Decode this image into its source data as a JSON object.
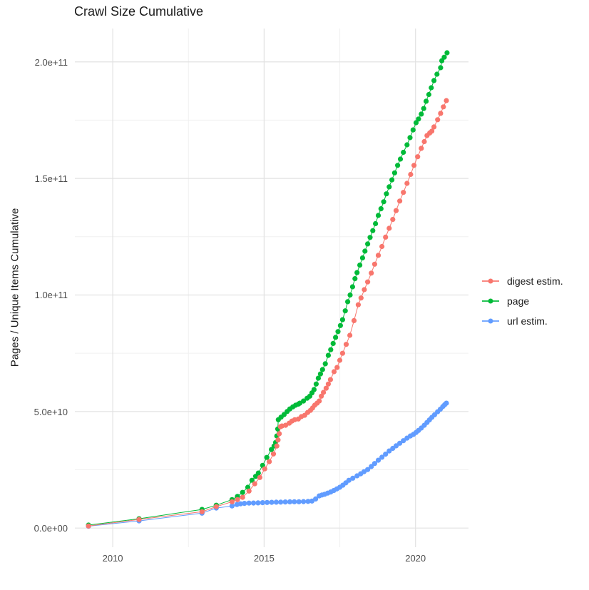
{
  "title": "Crawl Size Cumulative",
  "axes": {
    "y_label": "Pages / Unique Items Cumulative",
    "x_ticks": [
      {
        "label": "2010",
        "year": 2010
      },
      {
        "label": "2015",
        "year": 2015
      },
      {
        "label": "2020",
        "year": 2020
      }
    ],
    "y_ticks": [
      {
        "label": "0.0e+00",
        "value_billions": 0
      },
      {
        "label": "5.0e+10",
        "value_billions": 50
      },
      {
        "label": "1.0e+11",
        "value_billions": 100
      },
      {
        "label": "1.5e+11",
        "value_billions": 150
      },
      {
        "label": "2.0e+11",
        "value_billions": 200
      }
    ]
  },
  "chart_data": {
    "type": "line",
    "title": "Crawl Size Cumulative",
    "xlabel": "",
    "ylabel": "Pages / Unique Items Cumulative",
    "value_unit_note": "y values stored in billions (1e9); axis shows scientific notation",
    "xlim": [
      2008.75,
      2021.75
    ],
    "ylim_billions": [
      -8.2,
      214.3
    ],
    "grid": "on",
    "legend_position": "right",
    "x_major_gridlines": [
      2010,
      2015,
      2020
    ],
    "x_minor_gridlines": [
      2012.5,
      2017.5
    ],
    "y_major_gridlines_billions": [
      0,
      50,
      100,
      150,
      200
    ],
    "y_minor_gridlines_billions": [
      25,
      75,
      125,
      175
    ],
    "draw_order": [
      1,
      2,
      0
    ],
    "series": [
      {
        "name": "digest estim.",
        "color": "#F8766D",
        "points": [
          [
            2009.2,
            0.9
          ],
          [
            2010.87,
            3.7
          ],
          [
            2012.95,
            7.0
          ],
          [
            2013.42,
            9.2
          ],
          [
            2013.94,
            11.3
          ],
          [
            2014.12,
            12.2
          ],
          [
            2014.29,
            13.2
          ],
          [
            2014.5,
            15.9
          ],
          [
            2014.69,
            19.0
          ],
          [
            2014.86,
            21.7
          ],
          [
            2015.02,
            25.4
          ],
          [
            2015.17,
            28.5
          ],
          [
            2015.31,
            31.8
          ],
          [
            2015.42,
            35.2
          ],
          [
            2015.46,
            37.8
          ],
          [
            2015.5,
            40.5
          ],
          [
            2015.54,
            43.5
          ],
          [
            2015.59,
            43.8
          ],
          [
            2015.71,
            44.1
          ],
          [
            2015.83,
            45.0
          ],
          [
            2015.92,
            45.9
          ],
          [
            2016.01,
            46.5
          ],
          [
            2016.13,
            46.8
          ],
          [
            2016.23,
            47.8
          ],
          [
            2016.34,
            48.4
          ],
          [
            2016.44,
            49.6
          ],
          [
            2016.53,
            50.5
          ],
          [
            2016.6,
            51.5
          ],
          [
            2016.67,
            52.7
          ],
          [
            2016.75,
            53.6
          ],
          [
            2016.82,
            54.5
          ],
          [
            2016.89,
            56.6
          ],
          [
            2016.96,
            58.2
          ],
          [
            2017.05,
            60.0
          ],
          [
            2017.12,
            61.8
          ],
          [
            2017.19,
            63.7
          ],
          [
            2017.31,
            67.1
          ],
          [
            2017.41,
            68.9
          ],
          [
            2017.5,
            72.0
          ],
          [
            2017.59,
            75.0
          ],
          [
            2017.71,
            78.8
          ],
          [
            2017.83,
            82.7
          ],
          [
            2017.97,
            89.0
          ],
          [
            2018.11,
            95.8
          ],
          [
            2018.2,
            98.7
          ],
          [
            2018.31,
            102.3
          ],
          [
            2018.42,
            105.6
          ],
          [
            2018.54,
            109.4
          ],
          [
            2018.65,
            113.2
          ],
          [
            2018.77,
            117.0
          ],
          [
            2018.89,
            120.8
          ],
          [
            2019.01,
            124.8
          ],
          [
            2019.13,
            128.6
          ],
          [
            2019.25,
            132.4
          ],
          [
            2019.36,
            136.2
          ],
          [
            2019.48,
            140.3
          ],
          [
            2019.6,
            144.0
          ],
          [
            2019.72,
            147.9
          ],
          [
            2019.84,
            151.7
          ],
          [
            2019.95,
            155.6
          ],
          [
            2020.07,
            159.3
          ],
          [
            2020.19,
            162.9
          ],
          [
            2020.29,
            165.8
          ],
          [
            2020.38,
            168.4
          ],
          [
            2020.47,
            169.5
          ],
          [
            2020.54,
            170.3
          ],
          [
            2020.61,
            172.1
          ],
          [
            2020.73,
            175.2
          ],
          [
            2020.83,
            177.9
          ],
          [
            2020.92,
            180.7
          ],
          [
            2021.02,
            183.4
          ]
        ]
      },
      {
        "name": "page",
        "color": "#00BA38",
        "points": [
          [
            2009.2,
            1.3
          ],
          [
            2010.87,
            4.0
          ],
          [
            2012.95,
            8.0
          ],
          [
            2013.42,
            9.8
          ],
          [
            2013.94,
            12.2
          ],
          [
            2014.12,
            13.6
          ],
          [
            2014.29,
            15.3
          ],
          [
            2014.46,
            17.5
          ],
          [
            2014.6,
            20.5
          ],
          [
            2014.72,
            22.2
          ],
          [
            2014.81,
            23.6
          ],
          [
            2014.95,
            26.9
          ],
          [
            2015.09,
            30.3
          ],
          [
            2015.24,
            33.7
          ],
          [
            2015.33,
            35.2
          ],
          [
            2015.38,
            36.7
          ],
          [
            2015.42,
            39.5
          ],
          [
            2015.45,
            42.5
          ],
          [
            2015.47,
            46.5
          ],
          [
            2015.56,
            47.6
          ],
          [
            2015.66,
            48.7
          ],
          [
            2015.76,
            50.0
          ],
          [
            2015.85,
            51.1
          ],
          [
            2015.95,
            52.0
          ],
          [
            2016.04,
            52.7
          ],
          [
            2016.13,
            53.2
          ],
          [
            2016.18,
            53.6
          ],
          [
            2016.3,
            54.5
          ],
          [
            2016.42,
            55.7
          ],
          [
            2016.51,
            56.6
          ],
          [
            2016.58,
            58.0
          ],
          [
            2016.65,
            59.4
          ],
          [
            2016.72,
            61.8
          ],
          [
            2016.79,
            64.3
          ],
          [
            2016.86,
            66.1
          ],
          [
            2016.93,
            68.0
          ],
          [
            2017.02,
            70.5
          ],
          [
            2017.12,
            74.1
          ],
          [
            2017.2,
            76.5
          ],
          [
            2017.28,
            79.2
          ],
          [
            2017.36,
            81.8
          ],
          [
            2017.44,
            84.3
          ],
          [
            2017.52,
            86.9
          ],
          [
            2017.59,
            89.4
          ],
          [
            2017.68,
            93.2
          ],
          [
            2017.76,
            97.1
          ],
          [
            2017.84,
            100.0
          ],
          [
            2017.92,
            103.5
          ],
          [
            2018.0,
            107.0
          ],
          [
            2018.07,
            109.6
          ],
          [
            2018.16,
            112.8
          ],
          [
            2018.25,
            115.9
          ],
          [
            2018.33,
            118.8
          ],
          [
            2018.42,
            121.9
          ],
          [
            2018.5,
            124.7
          ],
          [
            2018.59,
            127.6
          ],
          [
            2018.68,
            130.6
          ],
          [
            2018.77,
            134.1
          ],
          [
            2018.86,
            137.0
          ],
          [
            2018.95,
            140.0
          ],
          [
            2019.04,
            143.4
          ],
          [
            2019.13,
            146.4
          ],
          [
            2019.22,
            149.4
          ],
          [
            2019.31,
            152.4
          ],
          [
            2019.41,
            155.6
          ],
          [
            2019.5,
            158.3
          ],
          [
            2019.6,
            161.2
          ],
          [
            2019.72,
            164.4
          ],
          [
            2019.82,
            167.5
          ],
          [
            2019.92,
            170.8
          ],
          [
            2020.02,
            173.9
          ],
          [
            2020.1,
            175.5
          ],
          [
            2020.19,
            177.6
          ],
          [
            2020.27,
            180.0
          ],
          [
            2020.35,
            183.1
          ],
          [
            2020.44,
            186.0
          ],
          [
            2020.52,
            188.9
          ],
          [
            2020.61,
            192.0
          ],
          [
            2020.71,
            194.7
          ],
          [
            2020.83,
            197.5
          ],
          [
            2020.87,
            200.5
          ],
          [
            2020.95,
            202.0
          ],
          [
            2021.04,
            203.9
          ]
        ]
      },
      {
        "name": "url estim.",
        "color": "#619CFF",
        "points": [
          [
            2009.2,
            0.8
          ],
          [
            2010.87,
            3.1
          ],
          [
            2012.95,
            6.4
          ],
          [
            2013.42,
            8.6
          ],
          [
            2013.94,
            9.5
          ],
          [
            2014.1,
            10.1
          ],
          [
            2014.22,
            10.4
          ],
          [
            2014.35,
            10.6
          ],
          [
            2014.5,
            10.7
          ],
          [
            2014.65,
            10.75
          ],
          [
            2014.8,
            10.8
          ],
          [
            2014.95,
            10.9
          ],
          [
            2015.1,
            11.0
          ],
          [
            2015.25,
            11.05
          ],
          [
            2015.4,
            11.1
          ],
          [
            2015.55,
            11.15
          ],
          [
            2015.7,
            11.2
          ],
          [
            2015.85,
            11.25
          ],
          [
            2016.0,
            11.3
          ],
          [
            2016.15,
            11.3
          ],
          [
            2016.3,
            11.35
          ],
          [
            2016.45,
            11.45
          ],
          [
            2016.58,
            11.6
          ],
          [
            2016.7,
            12.5
          ],
          [
            2016.82,
            13.8
          ],
          [
            2016.91,
            14.2
          ],
          [
            2017.0,
            14.5
          ],
          [
            2017.1,
            15.0
          ],
          [
            2017.2,
            15.5
          ],
          [
            2017.3,
            16.1
          ],
          [
            2017.4,
            16.8
          ],
          [
            2017.5,
            17.5
          ],
          [
            2017.6,
            18.4
          ],
          [
            2017.7,
            19.4
          ],
          [
            2017.8,
            20.5
          ],
          [
            2017.93,
            21.4
          ],
          [
            2018.07,
            22.4
          ],
          [
            2018.19,
            23.3
          ],
          [
            2018.3,
            24.2
          ],
          [
            2018.42,
            25.1
          ],
          [
            2018.54,
            26.4
          ],
          [
            2018.65,
            27.7
          ],
          [
            2018.77,
            29.1
          ],
          [
            2018.89,
            30.4
          ],
          [
            2019.01,
            31.7
          ],
          [
            2019.13,
            33.1
          ],
          [
            2019.25,
            34.2
          ],
          [
            2019.36,
            35.3
          ],
          [
            2019.48,
            36.4
          ],
          [
            2019.6,
            37.5
          ],
          [
            2019.72,
            38.6
          ],
          [
            2019.83,
            39.5
          ],
          [
            2019.93,
            40.2
          ],
          [
            2020.02,
            41.0
          ],
          [
            2020.1,
            41.9
          ],
          [
            2020.19,
            42.9
          ],
          [
            2020.29,
            44.1
          ],
          [
            2020.38,
            45.3
          ],
          [
            2020.46,
            46.4
          ],
          [
            2020.54,
            47.5
          ],
          [
            2020.63,
            48.6
          ],
          [
            2020.73,
            49.9
          ],
          [
            2020.82,
            51.0
          ],
          [
            2020.9,
            52.1
          ],
          [
            2020.96,
            52.9
          ],
          [
            2021.02,
            53.6
          ]
        ]
      }
    ]
  }
}
